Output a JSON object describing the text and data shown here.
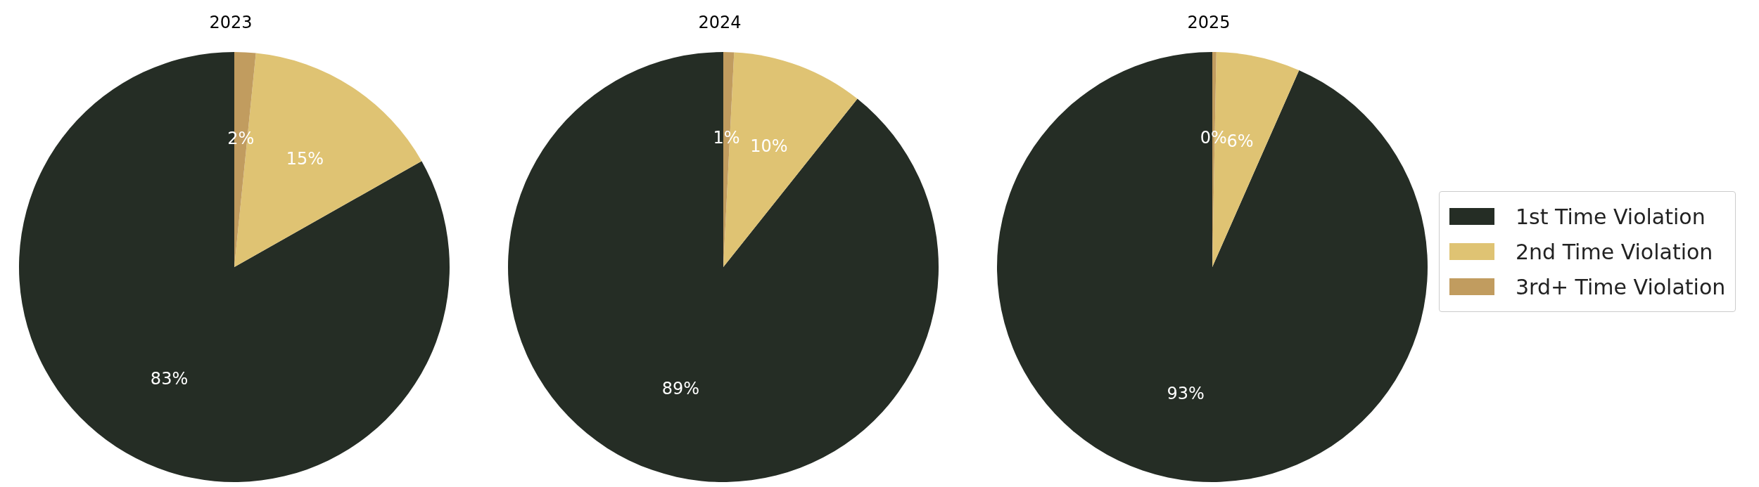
{
  "chart_data": [
    {
      "type": "pie",
      "title": "2023",
      "categories": [
        "1st Time Violation",
        "2nd Time Violation",
        "3rd+ Time Violation"
      ],
      "values": [
        83.2,
        15.2,
        1.6
      ],
      "value_labels": [
        "83%",
        "15%",
        "2%"
      ],
      "colors": [
        "#252d25",
        "#dfc373",
        "#c19c5f"
      ],
      "legend": "right"
    },
    {
      "type": "pie",
      "title": "2024",
      "categories": [
        null,
        null,
        null
      ],
      "values": [
        89.3,
        9.9,
        0.8
      ],
      "value_labels": [
        "89%",
        "10%",
        "1%"
      ],
      "colors": [
        "#252d25",
        "#dfc373",
        "#c19c5f"
      ]
    },
    {
      "type": "pie",
      "title": "2025",
      "categories": [
        null,
        null,
        null
      ],
      "values": [
        93.4,
        6.3,
        0.3
      ],
      "value_labels": [
        "93%",
        "6%",
        "0%"
      ],
      "colors": [
        "#252d25",
        "#dfc373",
        "#c19c5f"
      ]
    }
  ]
}
